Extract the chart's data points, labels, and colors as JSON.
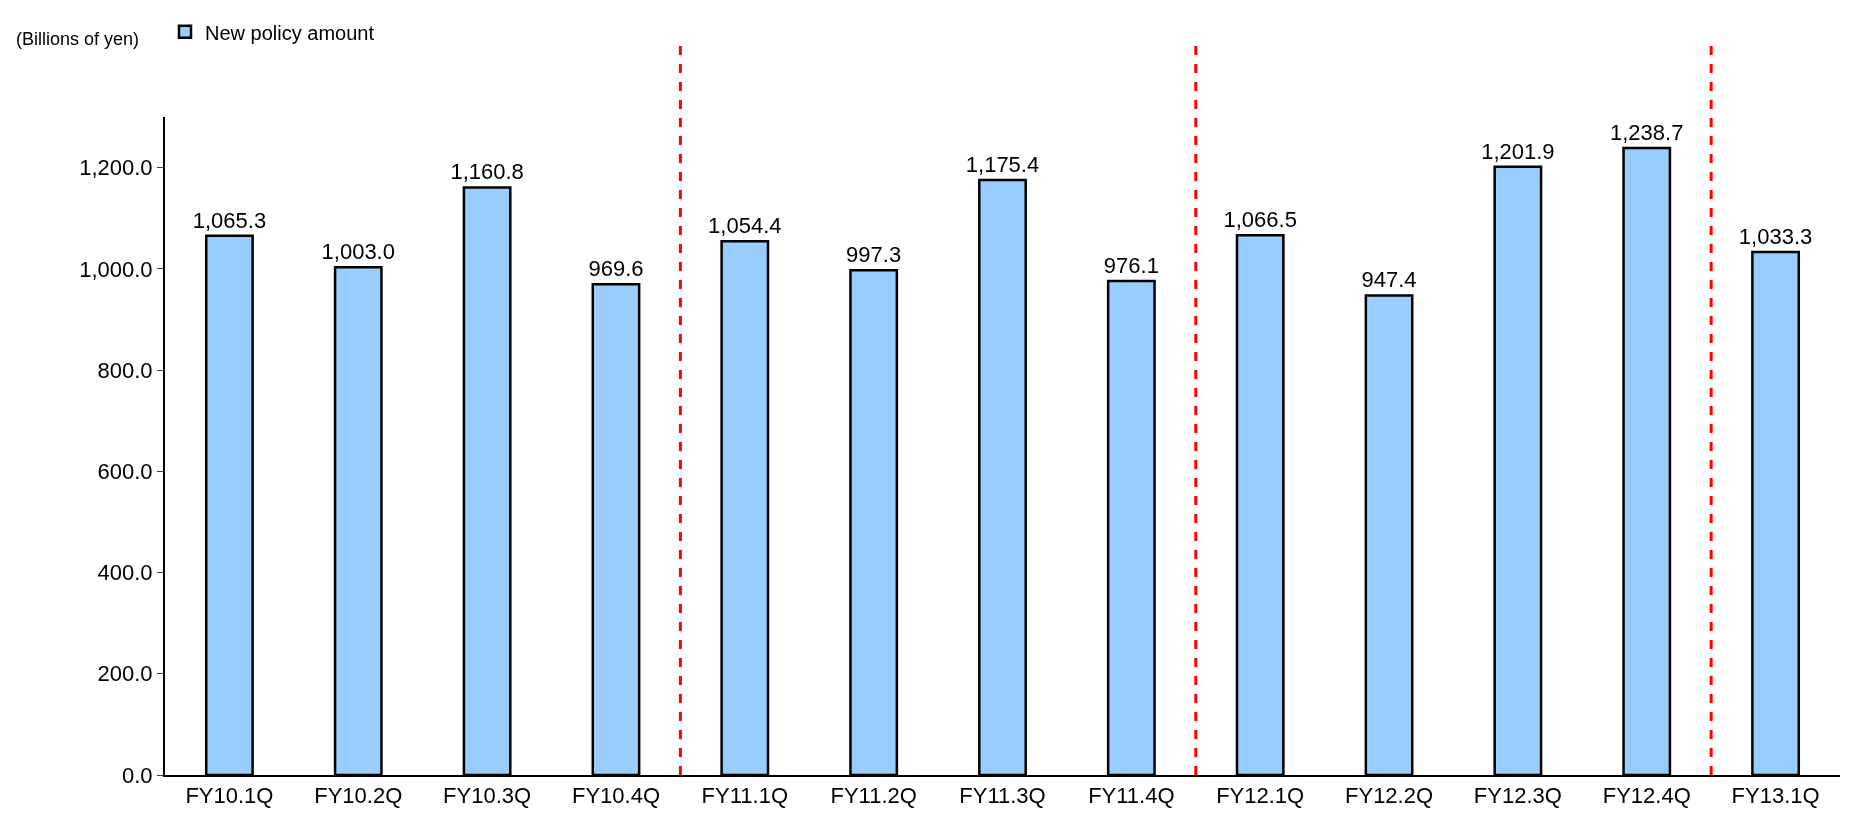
{
  "chart_data": {
    "type": "bar",
    "ylabel": "(Billions of yen)",
    "categories": [
      "FY10.1Q",
      "FY10.2Q",
      "FY10.3Q",
      "FY10.4Q",
      "FY11.1Q",
      "FY11.2Q",
      "FY11.3Q",
      "FY11.4Q",
      "FY12.1Q",
      "FY12.2Q",
      "FY12.3Q",
      "FY12.4Q",
      "FY13.1Q"
    ],
    "series": [
      {
        "name": "New policy amount",
        "color": "#99ccff",
        "values": [
          1065.3,
          1003.0,
          1160.8,
          969.6,
          1054.4,
          997.3,
          1175.4,
          976.1,
          1066.5,
          947.4,
          1201.9,
          1238.7,
          1033.3
        ],
        "value_labels": [
          "1,065.3",
          "1,003.0",
          "1,160.8",
          "969.6",
          "1,054.4",
          "997.3",
          "1,175.4",
          "976.1",
          "1,066.5",
          "947.4",
          "1,201.9",
          "1,238.7",
          "1,033.3"
        ]
      }
    ],
    "ylim": [
      0,
      1300
    ],
    "yticks": [
      {
        "value": 0,
        "label": "0.0"
      },
      {
        "value": 200,
        "label": "200.0"
      },
      {
        "value": 400,
        "label": "400.0"
      },
      {
        "value": 600,
        "label": "600.0"
      },
      {
        "value": 800,
        "label": "800.0"
      },
      {
        "value": 1000,
        "label": "1,000.0"
      },
      {
        "value": 1200,
        "label": "1,200.0"
      }
    ],
    "legend": "top left"
  }
}
